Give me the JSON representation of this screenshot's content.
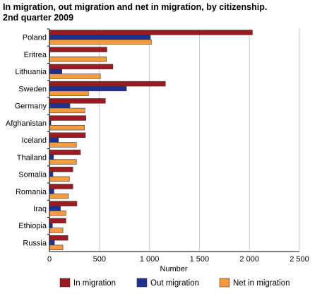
{
  "chart_data": {
    "type": "bar",
    "orientation": "horizontal",
    "title": "In migration, out migration and net in migration, by citizenship.",
    "subtitle": "2nd quarter 2009",
    "xlabel": "Number",
    "ylabel": "",
    "xlim": [
      0,
      2500
    ],
    "xticks": [
      0,
      500,
      1000,
      1500,
      2000,
      2500
    ],
    "xtick_labels": [
      "0",
      "500",
      "1 000",
      "1 500",
      "2 000",
      "2 500"
    ],
    "grid": true,
    "legend_position": "bottom",
    "categories": [
      "Poland",
      "Eritrea",
      "Lithuania",
      "Sweden",
      "Germany",
      "Afghanistan",
      "Iceland",
      "Thailand",
      "Somalia",
      "Romania",
      "Iraq",
      "Ethiopia",
      "Russia"
    ],
    "series": [
      {
        "name": "In migration",
        "color": "#9b1b22",
        "values": [
          2030,
          575,
          635,
          1160,
          560,
          365,
          360,
          310,
          235,
          235,
          275,
          165,
          185
        ]
      },
      {
        "name": "Out migration",
        "color": "#1f2f8f",
        "values": [
          1010,
          5,
          125,
          770,
          205,
          15,
          90,
          40,
          35,
          45,
          110,
          30,
          50
        ]
      },
      {
        "name": "Net in migration",
        "color": "#f39b3d",
        "values": [
          1020,
          570,
          510,
          390,
          355,
          350,
          270,
          270,
          200,
          190,
          165,
          135,
          135
        ]
      }
    ]
  }
}
